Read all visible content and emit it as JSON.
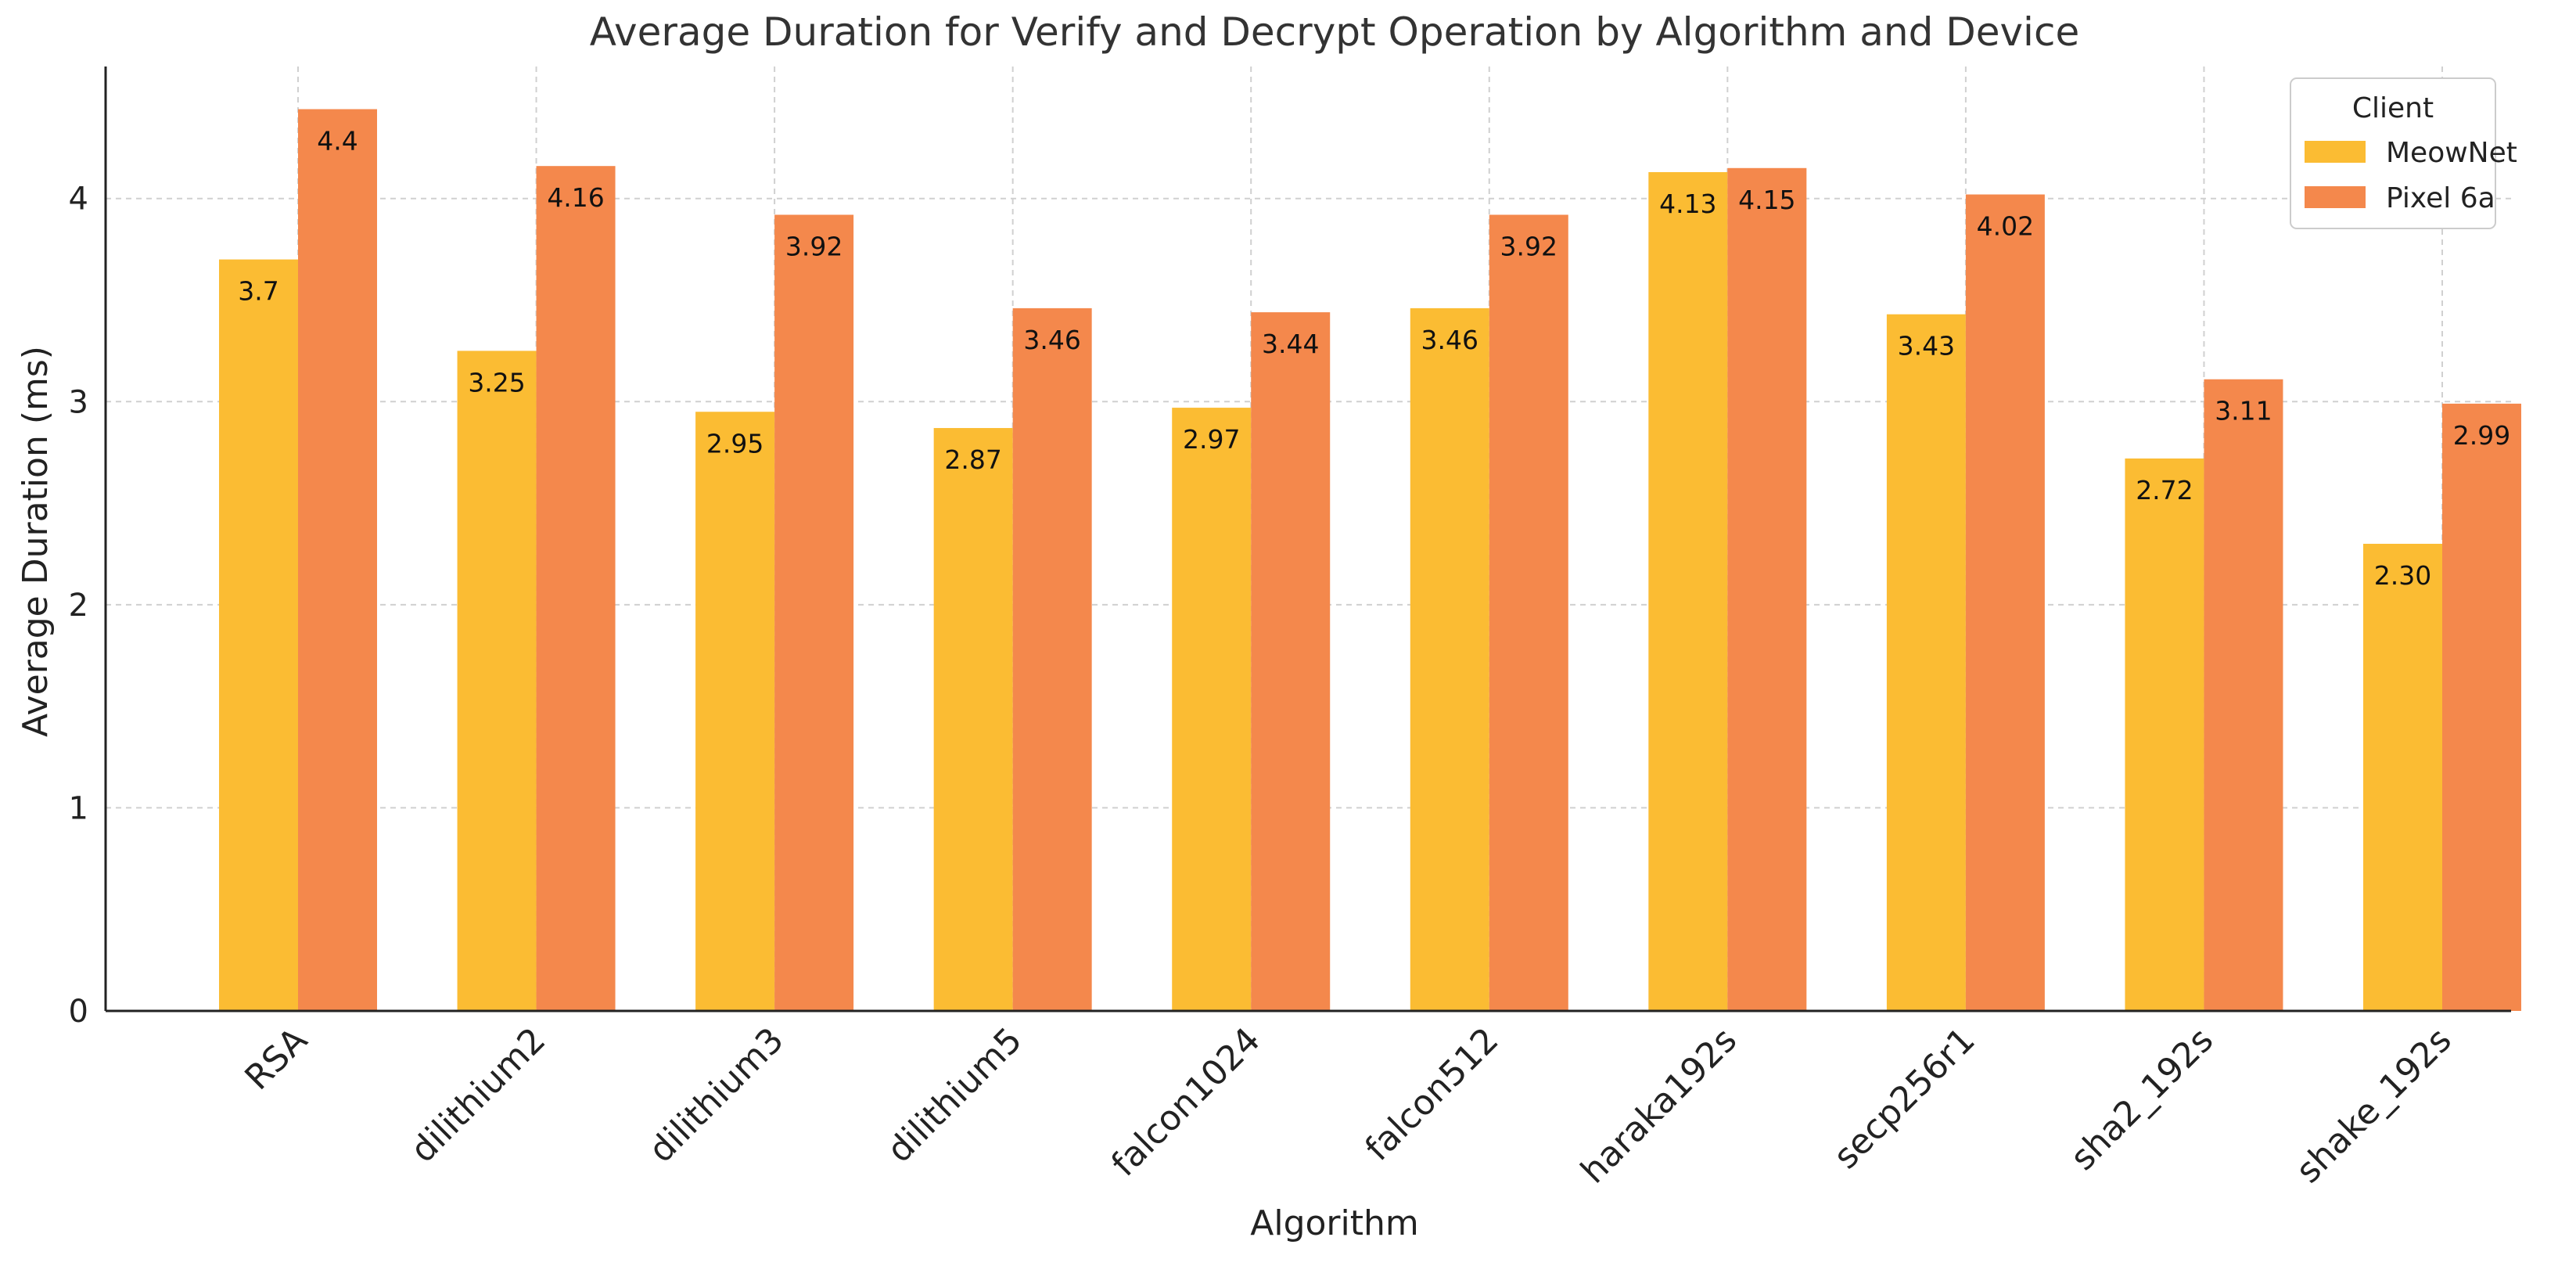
{
  "chart_data": {
    "type": "bar",
    "title": "Average Duration for Verify and Decrypt Operation by Algorithm and Device",
    "xlabel": "Algorithm",
    "ylabel": "Average Duration (ms)",
    "ylim": [
      0,
      4.65
    ],
    "yticks": [
      0,
      1,
      2,
      3,
      4
    ],
    "ytick_labels": [
      "0",
      "1",
      "2",
      "3",
      "4"
    ],
    "grid": true,
    "legend_title": "Client",
    "legend_position": "top-right",
    "categories": [
      "RSA",
      "dilithium2",
      "dilithium3",
      "dilithium5",
      "falcon1024",
      "falcon512",
      "haraka192s",
      "secp256r1",
      "sha2_192s",
      "shake_192s"
    ],
    "series": [
      {
        "name": "MeowNet",
        "color": "#FBBC33",
        "values": [
          3.7,
          3.25,
          2.95,
          2.87,
          2.97,
          3.46,
          4.13,
          3.43,
          2.72,
          2.3
        ],
        "labels": [
          "3.7",
          "3.25",
          "2.95",
          "2.87",
          "2.97",
          "3.46",
          "4.13",
          "3.43",
          "2.72",
          "2.30"
        ]
      },
      {
        "name": "Pixel 6a",
        "color": "#F4884C",
        "values": [
          4.44,
          4.16,
          3.92,
          3.46,
          3.44,
          3.92,
          4.15,
          4.02,
          3.11,
          2.99
        ],
        "labels": [
          "4.4",
          "4.16",
          "3.92",
          "3.46",
          "3.44",
          "3.92",
          "4.15",
          "4.02",
          "3.11",
          "2.99"
        ]
      }
    ]
  }
}
